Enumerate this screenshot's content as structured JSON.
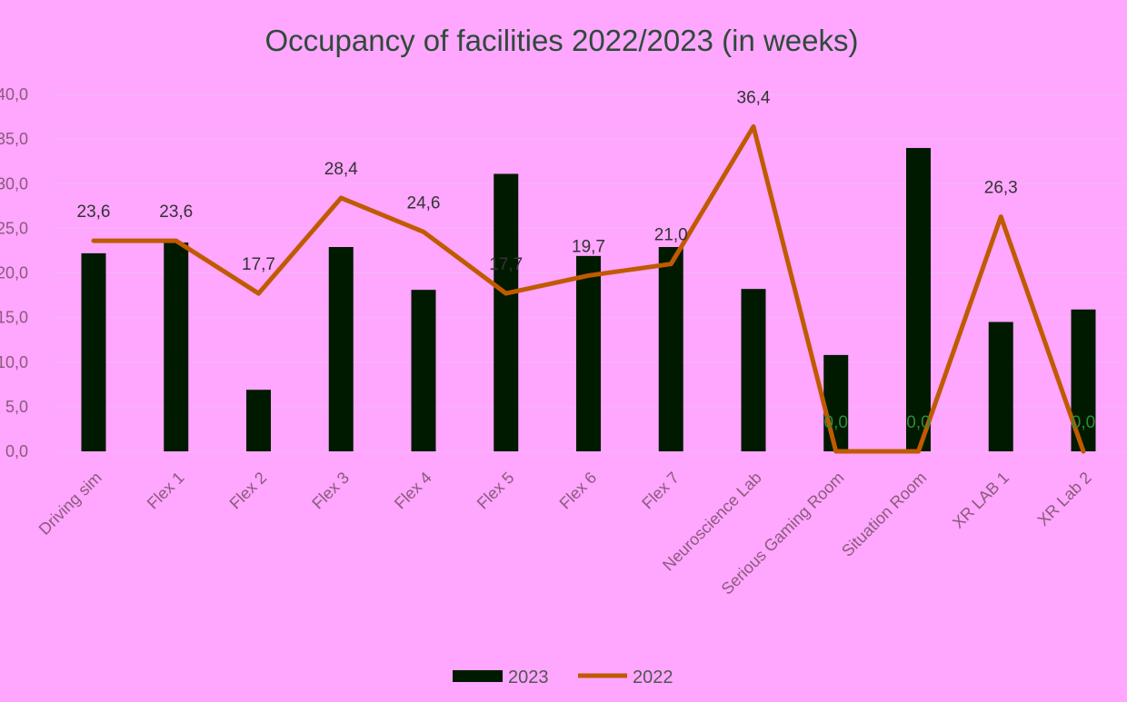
{
  "colors": {
    "background": "#ffa6ff",
    "bar_2023": "#001a00",
    "line_2022": "#c05a00",
    "zero_label": "#2e8b3a"
  },
  "chart_data": {
    "type": "bar",
    "title": "Occupancy of facilities 2022/2023 (in weeks)",
    "xlabel": "",
    "ylabel": "",
    "ylim": [
      0,
      40
    ],
    "y_ticks": [
      "0,0",
      "5,0",
      "10,0",
      "15,0",
      "20,0",
      "25,0",
      "30,0",
      "35,0",
      "40,0"
    ],
    "grid": true,
    "legend_position": "bottom",
    "categories": [
      "Driving sim",
      "Flex 1",
      "Flex 2",
      "Flex 3",
      "Flex 4",
      "Flex 5",
      "Flex 6",
      "Flex 7",
      "Neuroscience Lab",
      "Serious Gaming Room",
      "Situation Room",
      "XR LAB 1",
      "XR Lab 2"
    ],
    "series": [
      {
        "name": "2023",
        "type": "bar",
        "values": [
          22.2,
          23.4,
          6.9,
          22.9,
          18.1,
          31.1,
          21.9,
          22.9,
          18.2,
          10.8,
          34.0,
          14.5,
          15.9
        ]
      },
      {
        "name": "2022",
        "type": "line",
        "values": [
          23.6,
          23.6,
          17.7,
          28.4,
          24.6,
          17.7,
          19.7,
          21.0,
          36.4,
          0.0,
          0.0,
          26.3,
          0.0
        ],
        "labels": [
          "23,6",
          "23,6",
          "17,7",
          "28,4",
          "24,6",
          "17,7",
          "19,7",
          "21,0",
          "36,4",
          "0,0",
          "0,0",
          "26,3",
          "0,0"
        ]
      }
    ]
  }
}
